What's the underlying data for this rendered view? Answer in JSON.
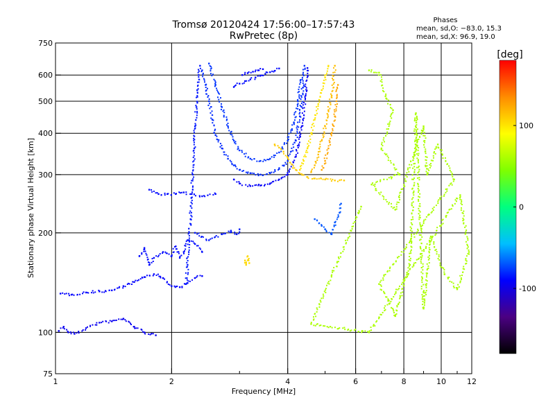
{
  "chart_data": {
    "type": "scatter",
    "title": "Tromsø 20120424 17:56:00–17:57:43",
    "subtitle": "RwPretec (8p)",
    "xlabel": "Frequency [MHz]",
    "ylabel": "Stationary phase Virtual Height [km]",
    "x_scale": "log",
    "y_scale": "log",
    "xlim": [
      1,
      12
    ],
    "ylim": [
      75,
      750
    ],
    "grid": true,
    "x_ticks": [
      1,
      2,
      4,
      6,
      8,
      10,
      12
    ],
    "x_tick_labels": [
      "1",
      "2",
      "4",
      "6",
      "8",
      "10",
      "12"
    ],
    "y_ticks": [
      75,
      100,
      200,
      300,
      400,
      500,
      600,
      750
    ],
    "y_tick_labels": [
      "75",
      "100",
      "200",
      "300",
      "400",
      "500",
      "600",
      "750"
    ],
    "stats": {
      "heading": "Phases",
      "line_o": "mean, sd,O: −83.0, 15.3",
      "line_x": "mean, sd,X:  96.9, 19.0"
    },
    "colorbar": {
      "label": "[deg]",
      "range": [
        -180,
        180
      ],
      "ticks": [
        100,
        0,
        -100
      ],
      "tick_labels": [
        "100",
        "0",
        "-100"
      ],
      "colors": [
        "#000000",
        "#4b0082",
        "#0000ff",
        "#00bfff",
        "#00ff7f",
        "#7fff00",
        "#ffff00",
        "#ff8c00",
        "#ff0000"
      ]
    },
    "series": [
      {
        "phase": -95,
        "points": [
          [
            1.02,
            101
          ],
          [
            1.05,
            104
          ],
          [
            1.08,
            100
          ],
          [
            1.12,
            99
          ],
          [
            1.2,
            103
          ],
          [
            1.3,
            107
          ],
          [
            1.4,
            108
          ],
          [
            1.5,
            110
          ],
          [
            1.6,
            104
          ],
          [
            1.7,
            100
          ],
          [
            1.82,
            98
          ]
        ]
      },
      {
        "phase": -90,
        "points": [
          [
            1.03,
            131
          ],
          [
            1.1,
            130
          ],
          [
            1.2,
            132
          ],
          [
            1.3,
            133
          ],
          [
            1.4,
            134
          ],
          [
            1.5,
            138
          ],
          [
            1.6,
            142
          ],
          [
            1.7,
            147
          ],
          [
            1.8,
            150
          ],
          [
            1.9,
            146
          ],
          [
            2.0,
            138
          ],
          [
            2.1,
            137
          ],
          [
            2.2,
            141
          ],
          [
            2.3,
            146
          ],
          [
            2.4,
            148
          ]
        ]
      },
      {
        "phase": -88,
        "points": [
          [
            1.65,
            170
          ],
          [
            1.7,
            180
          ],
          [
            1.75,
            160
          ],
          [
            1.8,
            168
          ],
          [
            1.9,
            175
          ],
          [
            2.0,
            170
          ],
          [
            2.05,
            182
          ],
          [
            2.1,
            168
          ],
          [
            2.15,
            175
          ],
          [
            2.2,
            190
          ],
          [
            2.3,
            185
          ],
          [
            2.4,
            175
          ]
        ]
      },
      {
        "phase": -85,
        "points": [
          [
            2.18,
            140
          ],
          [
            2.2,
            160
          ],
          [
            2.22,
            190
          ],
          [
            2.24,
            220
          ],
          [
            2.25,
            255
          ],
          [
            2.27,
            300
          ],
          [
            2.29,
            360
          ],
          [
            2.3,
            420
          ],
          [
            2.32,
            480
          ],
          [
            2.33,
            540
          ],
          [
            2.35,
            600
          ],
          [
            2.37,
            640
          ]
        ]
      },
      {
        "phase": -80,
        "points": [
          [
            2.4,
            620
          ],
          [
            2.45,
            560
          ],
          [
            2.5,
            500
          ],
          [
            2.55,
            440
          ],
          [
            2.6,
            395
          ],
          [
            2.7,
            360
          ],
          [
            2.8,
            335
          ],
          [
            2.9,
            320
          ],
          [
            3.0,
            310
          ],
          [
            3.2,
            303
          ],
          [
            3.4,
            300
          ],
          [
            3.6,
            303
          ],
          [
            3.8,
            312
          ],
          [
            4.0,
            330
          ],
          [
            4.2,
            380
          ],
          [
            4.3,
            450
          ],
          [
            4.38,
            550
          ],
          [
            4.42,
            640
          ]
        ]
      },
      {
        "phase": -78,
        "points": [
          [
            2.5,
            650
          ],
          [
            2.6,
            560
          ],
          [
            2.7,
            480
          ],
          [
            2.8,
            420
          ],
          [
            2.9,
            380
          ],
          [
            3.0,
            355
          ],
          [
            3.2,
            335
          ],
          [
            3.4,
            330
          ],
          [
            3.6,
            335
          ],
          [
            3.8,
            350
          ],
          [
            4.0,
            380
          ],
          [
            4.15,
            430
          ],
          [
            4.25,
            500
          ],
          [
            4.32,
            580
          ]
        ]
      },
      {
        "phase": -92,
        "points": [
          [
            2.9,
            290
          ],
          [
            3.0,
            282
          ],
          [
            3.2,
            277
          ],
          [
            3.4,
            278
          ],
          [
            3.6,
            282
          ],
          [
            3.8,
            290
          ],
          [
            4.0,
            300
          ],
          [
            4.2,
            340
          ],
          [
            4.35,
            420
          ],
          [
            4.45,
            520
          ],
          [
            4.5,
            630
          ]
        ]
      },
      {
        "phase": -88,
        "points": [
          [
            1.75,
            270
          ],
          [
            1.85,
            262
          ],
          [
            1.95,
            262
          ],
          [
            2.05,
            262
          ],
          [
            2.15,
            265
          ],
          [
            2.25,
            262
          ],
          [
            2.4,
            258
          ],
          [
            2.6,
            262
          ]
        ]
      },
      {
        "phase": -85,
        "points": [
          [
            2.3,
            200
          ],
          [
            2.5,
            190
          ],
          [
            2.7,
            198
          ],
          [
            2.85,
            203
          ],
          [
            2.95,
            198
          ],
          [
            3.0,
            205
          ]
        ]
      },
      {
        "phase": -88,
        "points": [
          [
            2.9,
            552
          ],
          [
            3.0,
            565
          ],
          [
            3.1,
            575
          ],
          [
            3.2,
            582
          ],
          [
            3.3,
            590
          ],
          [
            3.4,
            598
          ],
          [
            3.5,
            605
          ],
          [
            3.6,
            612
          ],
          [
            3.7,
            618
          ],
          [
            3.8,
            628
          ]
        ]
      },
      {
        "phase": -90,
        "points": [
          [
            3.05,
            600
          ],
          [
            3.15,
            608
          ],
          [
            3.25,
            614
          ],
          [
            3.35,
            620
          ],
          [
            3.45,
            625
          ]
        ]
      },
      {
        "phase": 110,
        "points": [
          [
            3.7,
            370
          ],
          [
            3.8,
            362
          ],
          [
            3.9,
            352
          ],
          [
            4.0,
            338
          ],
          [
            4.1,
            322
          ],
          [
            4.2,
            310
          ],
          [
            4.3,
            302
          ],
          [
            4.5,
            295
          ],
          [
            4.7,
            292
          ],
          [
            5.0,
            290
          ],
          [
            5.3,
            288
          ],
          [
            5.6,
            288
          ]
        ]
      },
      {
        "phase": 100,
        "points": [
          [
            4.3,
            310
          ],
          [
            4.4,
            330
          ],
          [
            4.5,
            360
          ],
          [
            4.6,
            400
          ],
          [
            4.7,
            440
          ],
          [
            4.8,
            490
          ],
          [
            4.9,
            540
          ],
          [
            5.0,
            590
          ],
          [
            5.1,
            640
          ]
        ]
      },
      {
        "phase": 115,
        "points": [
          [
            4.6,
            305
          ],
          [
            4.7,
            320
          ],
          [
            4.8,
            345
          ],
          [
            4.9,
            380
          ],
          [
            5.0,
            420
          ],
          [
            5.1,
            470
          ],
          [
            5.2,
            520
          ],
          [
            5.25,
            580
          ],
          [
            5.3,
            640
          ]
        ]
      },
      {
        "phase": 125,
        "points": [
          [
            4.9,
            310
          ],
          [
            5.0,
            330
          ],
          [
            5.1,
            360
          ],
          [
            5.2,
            400
          ],
          [
            5.3,
            450
          ],
          [
            5.35,
            500
          ],
          [
            5.4,
            560
          ]
        ]
      },
      {
        "phase": 105,
        "points": [
          [
            3.1,
            165
          ],
          [
            3.12,
            160
          ],
          [
            3.15,
            170
          ],
          [
            3.18,
            162
          ]
        ]
      },
      {
        "phase": -70,
        "points": [
          [
            4.7,
            220
          ],
          [
            4.9,
            210
          ],
          [
            5.0,
            205
          ],
          [
            5.2,
            198
          ],
          [
            5.3,
            215
          ],
          [
            5.45,
            230
          ],
          [
            5.5,
            245
          ]
        ]
      },
      {
        "phase": 60,
        "points": [
          [
            6.5,
            620
          ],
          [
            6.9,
            610
          ],
          [
            7.2,
            510
          ],
          [
            7.5,
            470
          ],
          [
            7.0,
            360
          ],
          [
            7.8,
            300
          ],
          [
            6.6,
            280
          ],
          [
            7.6,
            235
          ],
          [
            9.0,
            420
          ],
          [
            9.2,
            300
          ],
          [
            9.8,
            370
          ],
          [
            10.8,
            290
          ],
          [
            6.9,
            140
          ],
          [
            7.3,
            125
          ],
          [
            7.6,
            112
          ],
          [
            8.3,
            160
          ],
          [
            8.6,
            460
          ],
          [
            9.0,
            118
          ],
          [
            9.4,
            195
          ],
          [
            10.2,
            150
          ],
          [
            11.0,
            135
          ],
          [
            11.8,
            175
          ],
          [
            11.2,
            260
          ],
          [
            6.5,
            100
          ],
          [
            4.6,
            106
          ],
          [
            6.2,
            240
          ]
        ]
      }
    ]
  }
}
